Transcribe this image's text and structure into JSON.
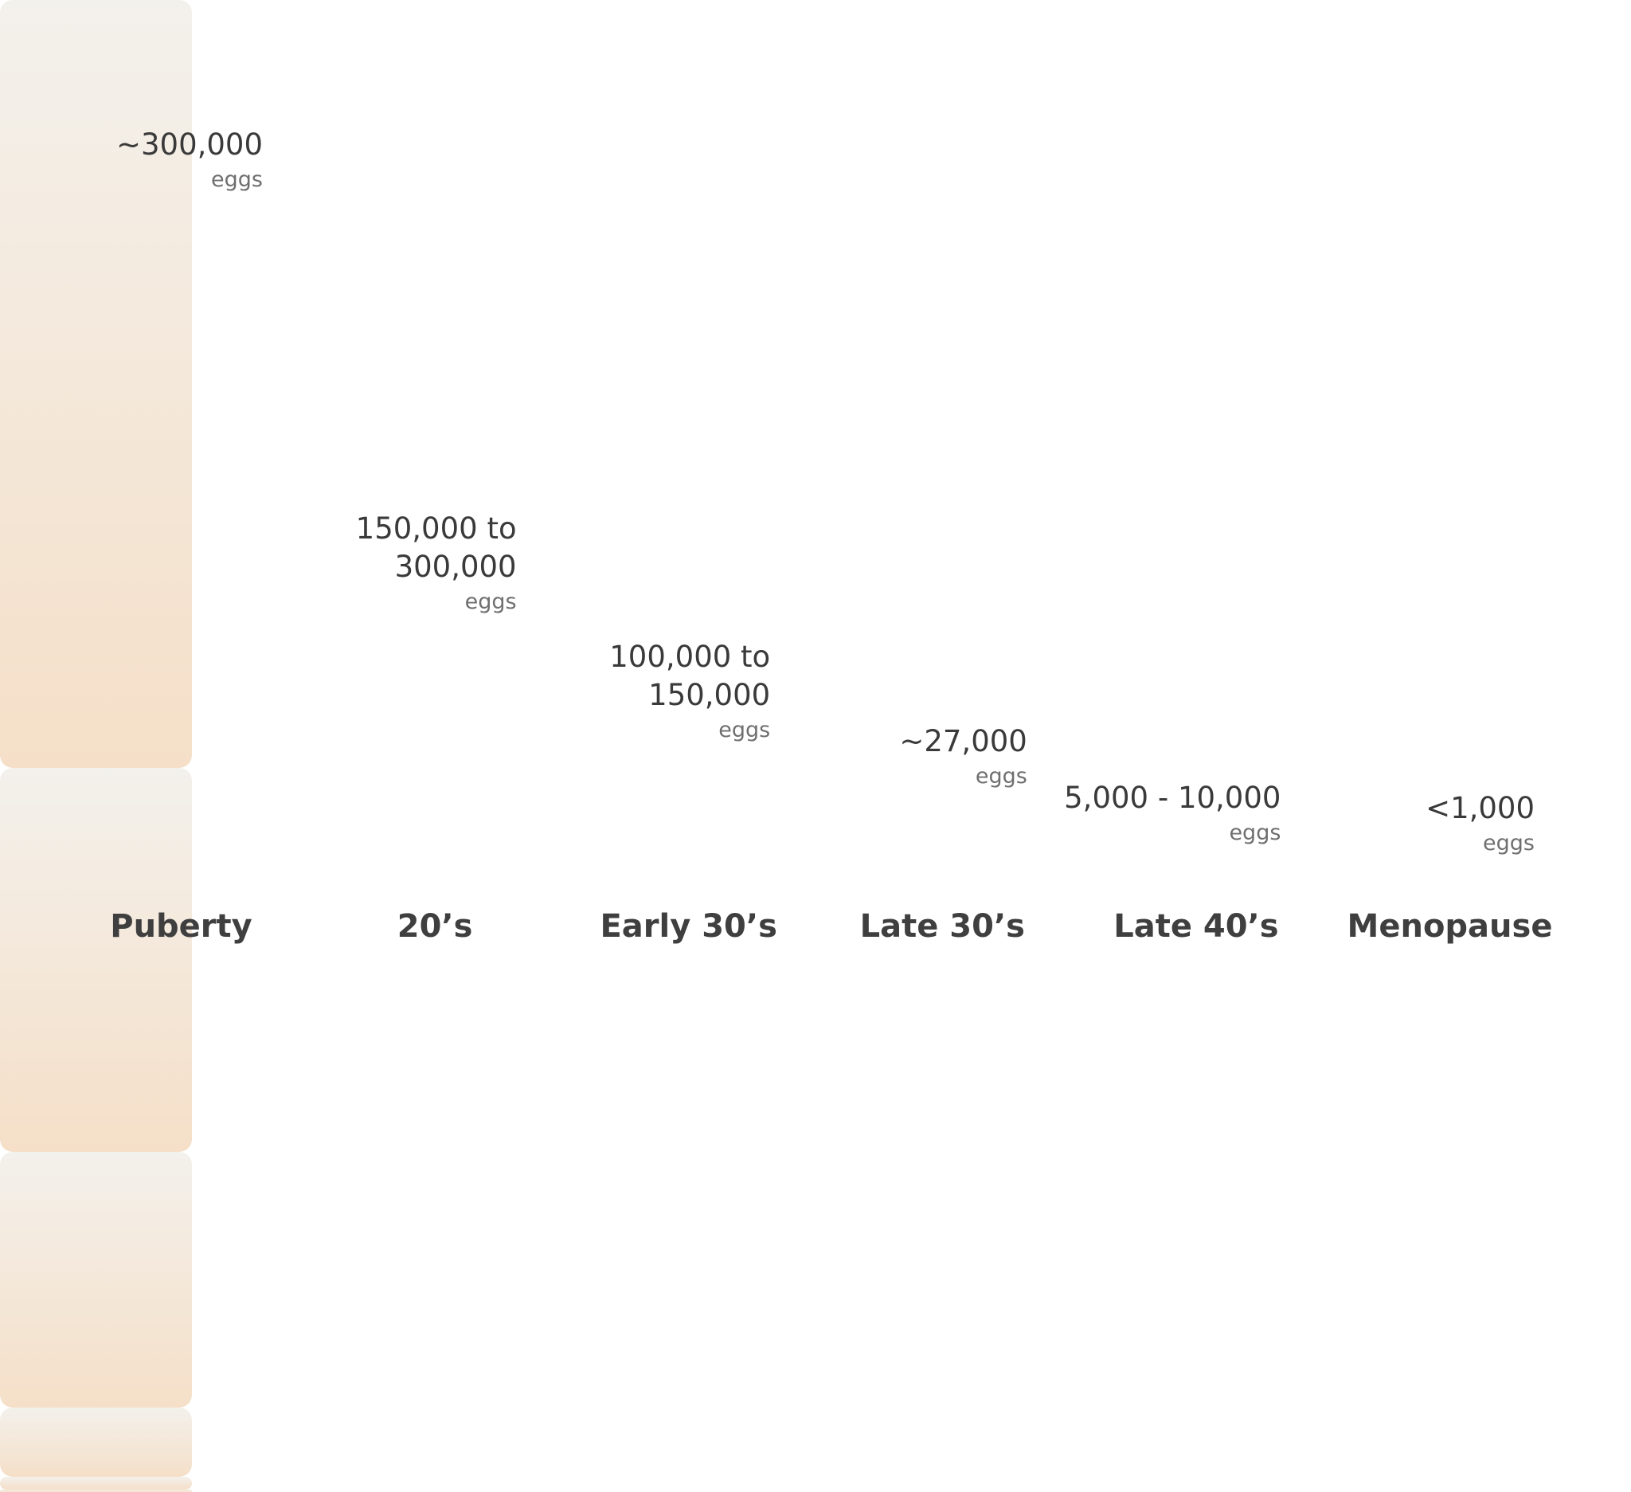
{
  "chart_data": {
    "type": "bar",
    "categories": [
      "Puberty",
      "20’s",
      "Early 30’s",
      "Late 30’s",
      "Late 40’s",
      "Menopause"
    ],
    "values": [
      300000,
      150000,
      100000,
      27000,
      5000,
      1000
    ],
    "value_labels": [
      "~300,000",
      "150,000 to 300,000",
      "100,000 to 150,000",
      "~27,000",
      "5,000 - 10,000",
      "<1,000"
    ],
    "unit": "eggs",
    "color": [
      "#f3f1ec",
      "#f5dfc8"
    ]
  }
}
